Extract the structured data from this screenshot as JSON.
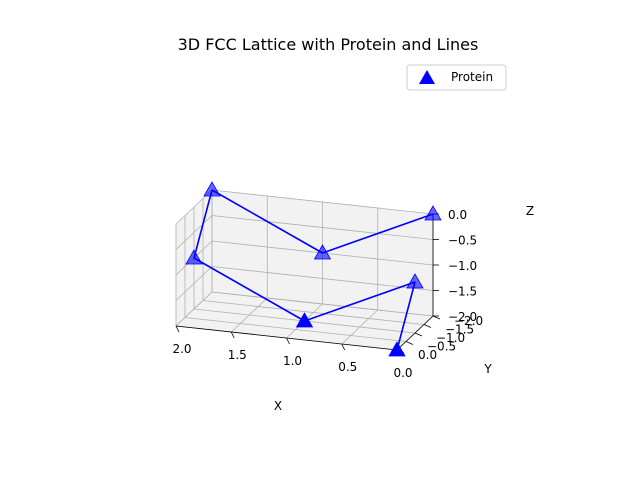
{
  "chart_data": {
    "type": "scatter3d",
    "title": "3D FCC Lattice with Protein and Lines",
    "xlabel": "X",
    "ylabel": "Y",
    "zlabel": "Z",
    "xlim": [
      0,
      2
    ],
    "ylim": [
      -2,
      0
    ],
    "zlim": [
      -2,
      0
    ],
    "x_ticks": [
      "2.0",
      "1.5",
      "1.0",
      "0.5",
      "0.0"
    ],
    "y_ticks": [
      "−2.0",
      "−1.5",
      "−1.0",
      "−0.5",
      "0.0"
    ],
    "z_ticks": [
      "0.0",
      "−0.5",
      "−1.0",
      "−1.5",
      "−2.0"
    ],
    "legend_position": "upper-right",
    "grid": true,
    "colors": {
      "marker": "#0000ff",
      "line": "#0000ff",
      "pane": "#f2f2f2",
      "grid": "#b0b0b0"
    },
    "series": [
      {
        "name": "Protein",
        "marker": "triangle",
        "points": [
          {
            "x": 0.0,
            "y": 0.0,
            "z": -2.0
          },
          {
            "x": 0.0,
            "y": -1.0,
            "z": -1.0
          },
          {
            "x": 1.0,
            "y": -1.0,
            "z": -2.0
          },
          {
            "x": 2.0,
            "y": -1.0,
            "z": -1.0
          },
          {
            "x": 2.0,
            "y": -2.0,
            "z": 0.0
          },
          {
            "x": 1.0,
            "y": -2.0,
            "z": -1.0
          },
          {
            "x": 0.0,
            "y": -2.0,
            "z": 0.0
          }
        ]
      }
    ]
  }
}
